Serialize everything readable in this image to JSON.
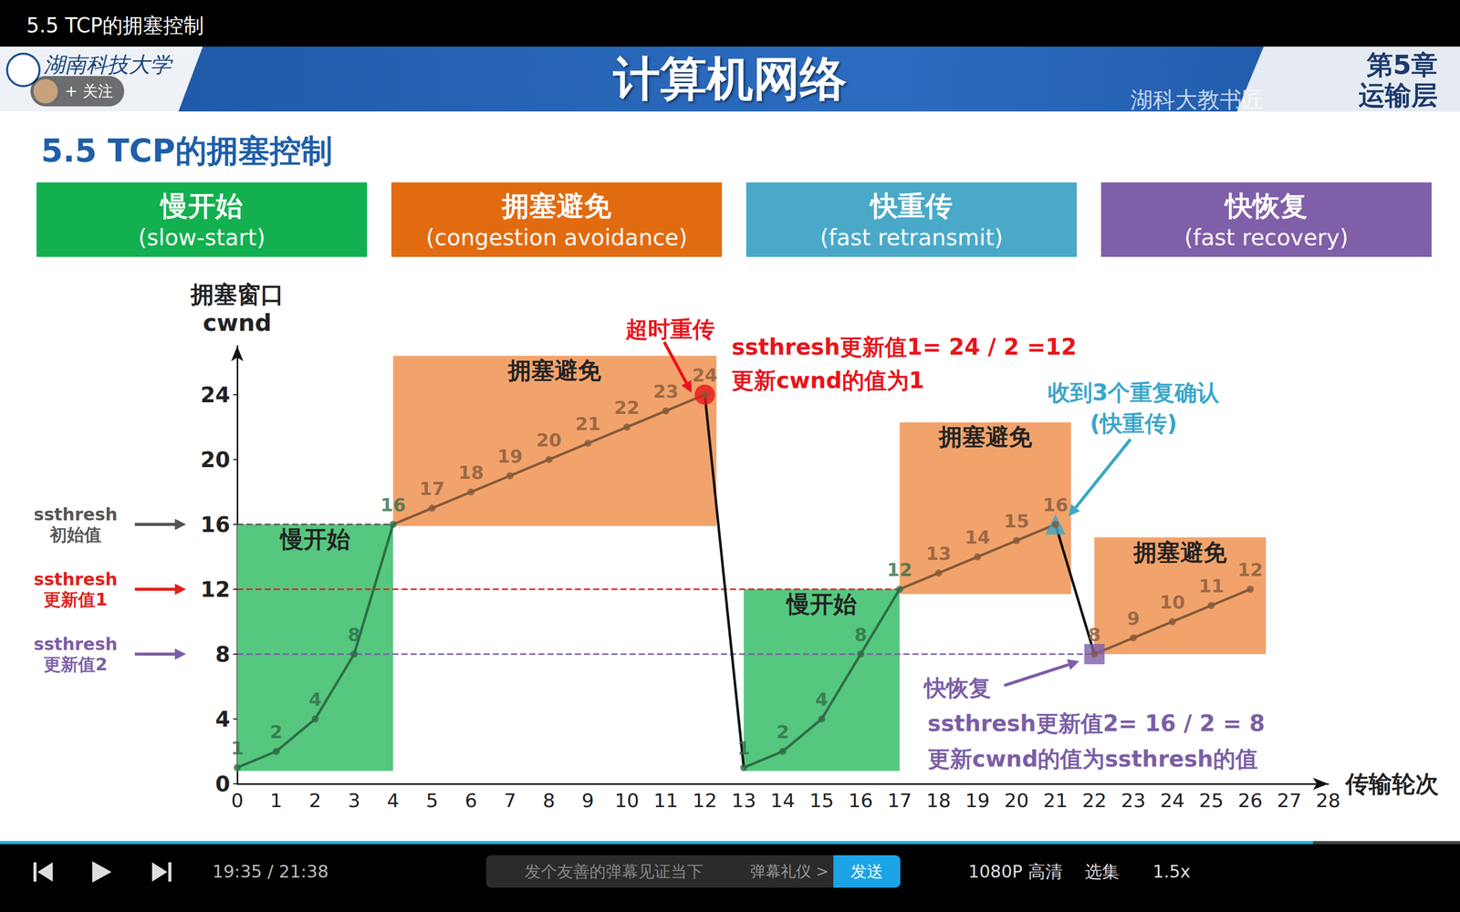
{
  "page": {
    "player_title": "5.5 TCP的拥塞控制",
    "school": "湖南科技大学",
    "follow": "+ 关注",
    "course": "计算机网络",
    "watermark": "湖科大教书匠",
    "chapter": "第5章",
    "chapter_name": "运输层",
    "slide_title": "5.5 TCP的拥塞控制",
    "boxes": [
      {
        "title": "慢开始",
        "subtitle": "(slow-start)",
        "color": "#13b04f"
      },
      {
        "title": "拥塞避免",
        "subtitle": "(congestion avoidance)",
        "color": "#e26b10"
      },
      {
        "title": "快重传",
        "subtitle": "(fast retransmit)",
        "color": "#4aa9c9"
      },
      {
        "title": "快恢复",
        "subtitle": "(fast recovery)",
        "color": "#7f5fa8"
      }
    ],
    "player": {
      "time": "19:35 / 21:38",
      "danmaku_placeholder": "发个友善的弹幕见证当下",
      "etiquette": "弹幕礼仪 >",
      "send": "发送",
      "quality": "1080P 高清",
      "episodes": "选集",
      "speed": "1.5x"
    }
  },
  "chart_data": {
    "type": "line",
    "marker": "circle",
    "x_label": "传输轮次",
    "y_label": "拥塞窗口\ncwnd",
    "x": [
      0,
      1,
      2,
      3,
      4,
      5,
      6,
      7,
      8,
      9,
      10,
      11,
      12,
      13,
      14,
      15,
      16,
      17,
      18,
      19,
      20,
      21,
      22,
      23,
      24,
      25,
      26
    ],
    "values": [
      1,
      2,
      4,
      8,
      16,
      17,
      18,
      19,
      20,
      21,
      22,
      23,
      24,
      1,
      2,
      4,
      8,
      12,
      13,
      14,
      15,
      16,
      8,
      9,
      10,
      11,
      12
    ],
    "data_labels": true,
    "grid": false,
    "xlim": [
      0,
      28
    ],
    "xticks": [
      0,
      1,
      2,
      3,
      4,
      5,
      6,
      7,
      8,
      9,
      10,
      11,
      12,
      13,
      14,
      15,
      16,
      17,
      18,
      19,
      20,
      21,
      22,
      23,
      24,
      25,
      26,
      27,
      28
    ],
    "ylim": [
      0,
      27
    ],
    "yticks": [
      0,
      4,
      8,
      12,
      16,
      20,
      24
    ],
    "phases": [
      {
        "label": "慢开始",
        "x": [
          0,
          4
        ],
        "y": [
          0.8,
          16
        ],
        "color": "#55c77f"
      },
      {
        "label": "拥塞避免",
        "x": [
          4,
          12.3
        ],
        "y": [
          15.9,
          26.4
        ],
        "color": "#f2a36b"
      },
      {
        "label": "慢开始",
        "x": [
          13,
          17
        ],
        "y": [
          0.8,
          12
        ],
        "color": "#55c77f"
      },
      {
        "label": "拥塞避免",
        "x": [
          17,
          21.4
        ],
        "y": [
          11.7,
          22.3
        ],
        "color": "#f2a36b"
      },
      {
        "label": "拥塞避免",
        "x": [
          22,
          26.4
        ],
        "y": [
          8,
          15.2
        ],
        "color": "#f2a36b"
      }
    ],
    "thresholds": [
      {
        "value": 16,
        "x_end": 4,
        "label": [
          "ssthresh",
          "初始值"
        ],
        "color": "#555555",
        "line_style": "dashed"
      },
      {
        "value": 12,
        "x_end": 17,
        "label": [
          "ssthresh",
          "更新值1"
        ],
        "color": "#e0201b",
        "line_style": "dashed"
      },
      {
        "value": 8,
        "x_end": 22,
        "label": [
          "ssthresh",
          "更新值2"
        ],
        "color": "#7b5ea7",
        "line_style": "dashed"
      }
    ],
    "markers": [
      {
        "x": 12,
        "y": 24,
        "marker": "circle",
        "color": "#e8141b"
      },
      {
        "x": 21,
        "y": 16,
        "marker": "triangle",
        "color": "#3aa6c9"
      },
      {
        "x": 22,
        "y": 8,
        "marker": "square",
        "color": "#7b5ea7"
      }
    ],
    "annotations": [
      {
        "lines": [
          "超时重传"
        ],
        "color": "#e8141b"
      },
      {
        "lines": [
          "ssthresh更新值1= 24 / 2 =12",
          "更新cwnd的值为1"
        ],
        "color": "#e8141b"
      },
      {
        "lines": [
          "收到3个重复确认",
          "(快重传)"
        ],
        "color": "#3aa6c9"
      },
      {
        "lines": [
          "快恢复"
        ],
        "color": "#7b5ea7"
      },
      {
        "lines": [
          "ssthresh更新值2= 16 / 2 = 8",
          "更新cwnd的值为ssthresh的值"
        ],
        "color": "#7b5ea7"
      }
    ]
  }
}
